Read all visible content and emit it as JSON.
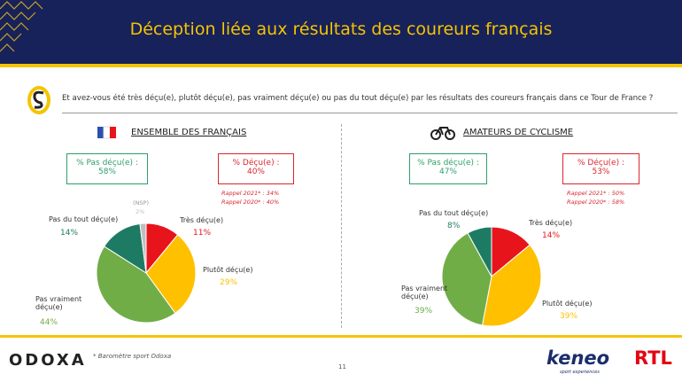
{
  "header": {
    "title": "Déception liée aux résultats des coureurs français"
  },
  "question": "Et avez-vous été très déçu(e), plutôt déçu(e), pas vraiment déçu(e) ou pas du tout déçu(e) par les résultats des coureurs français dans ce Tour de France ?",
  "chart_data": [
    {
      "type": "pie",
      "title": "ENSEMBLE DES FRANÇAIS",
      "categories": [
        "Très déçu(e)",
        "Plutôt déçu(e)",
        "Pas vraiment déçu(e)",
        "Pas du tout déçu(e)",
        "(NSP)"
      ],
      "values": [
        11,
        29,
        44,
        14,
        2
      ],
      "value_labels": [
        "11%",
        "29%",
        "44%",
        "14%",
        "2%"
      ],
      "colors": [
        "#e8141c",
        "#ffc000",
        "#70ad47",
        "#1e7b63",
        "#bfbfbf"
      ],
      "summary": [
        {
          "label": "% Pas déçu(e) :",
          "value": "58%"
        },
        {
          "label": "% Déçu(e) :",
          "value": "40%"
        }
      ],
      "recall": [
        "Rappel 2021* : 34%",
        "Rappel 2020* : 40%"
      ]
    },
    {
      "type": "pie",
      "title": "AMATEURS DE CYCLISME",
      "categories": [
        "Très déçu(e)",
        "Plutôt déçu(e)",
        "Pas vraiment déçu(e)",
        "Pas du tout déçu(e)"
      ],
      "values": [
        14,
        39,
        39,
        8
      ],
      "value_labels": [
        "14%",
        "39%",
        "39%",
        "8%"
      ],
      "colors": [
        "#e8141c",
        "#ffc000",
        "#70ad47",
        "#1e7b63"
      ],
      "summary": [
        {
          "label": "% Pas déçu(e) :",
          "value": "47%"
        },
        {
          "label": "% Déçu(e) :",
          "value": "53%"
        }
      ],
      "recall": [
        "Rappel 2021* : 50%",
        "Rappel 2020* : 58%"
      ]
    }
  ],
  "footer": {
    "brand": "ODOXA",
    "note": "* Baromètre sport Odoxa",
    "page": "11",
    "partner": "keneo",
    "partner_tagline": "sport experiences",
    "media": "RTL"
  }
}
